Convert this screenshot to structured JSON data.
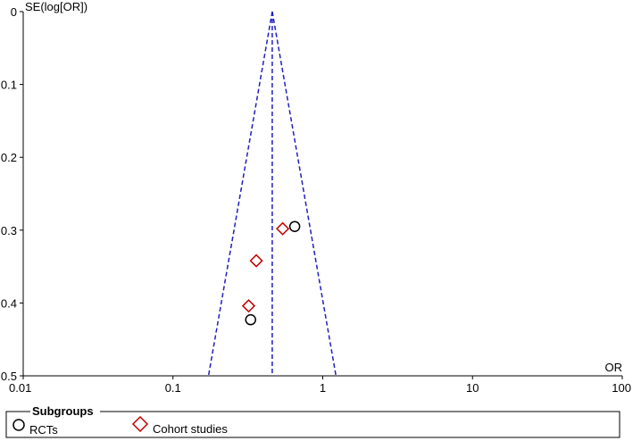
{
  "chart_data": {
    "type": "scatter",
    "subtype": "funnel-plot",
    "xlabel": "OR",
    "ylabel": "SE(log[OR])",
    "x_scale": "log",
    "xlim": [
      0.01,
      100
    ],
    "ylim": [
      0,
      0.5
    ],
    "y_inverted": true,
    "x_ticks": [
      "0.01",
      "0.1",
      "1",
      "10",
      "100"
    ],
    "y_ticks": [
      "0",
      "0.1",
      "0.2",
      "0.3",
      "0.4",
      "0.5"
    ],
    "funnel": {
      "pooled_or": 0.46,
      "color": "#1f1fbf",
      "style": "dashed"
    },
    "series": [
      {
        "name": "RCTs",
        "marker": "circle",
        "color": "#000000",
        "points": [
          {
            "x": 0.65,
            "y": 0.295
          },
          {
            "x": 0.33,
            "y": 0.423
          }
        ]
      },
      {
        "name": "Cohort studies",
        "marker": "diamond",
        "color": "#c00000",
        "points": [
          {
            "x": 0.54,
            "y": 0.298
          },
          {
            "x": 0.36,
            "y": 0.342
          },
          {
            "x": 0.32,
            "y": 0.404
          }
        ]
      }
    ],
    "legend": {
      "title": "Subgroups",
      "placement": "bottom"
    }
  }
}
